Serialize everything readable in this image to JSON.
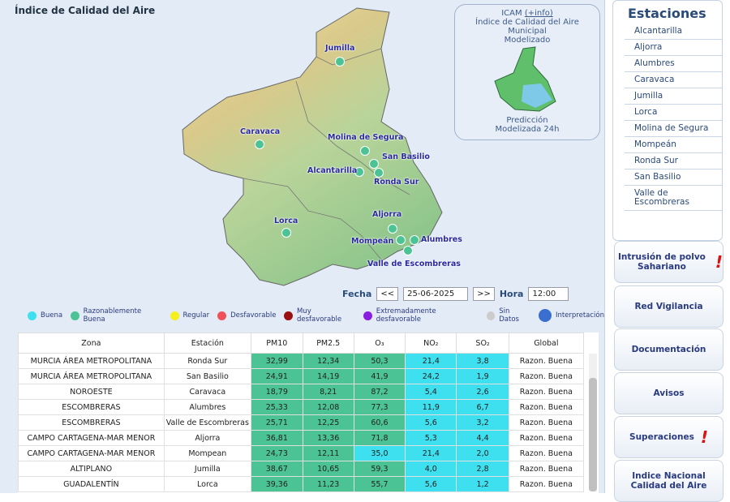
{
  "header": {
    "title": "Índice de Calidad del Aire"
  },
  "icam": {
    "title": "ICAM",
    "link": "(+info)",
    "line1": "Índice de Calidad del Aire Municipal",
    "line2": "Modelizado",
    "line3": "Predicción",
    "line4": "Modelizada 24h"
  },
  "map": {
    "stations": [
      "Jumilla",
      "Caravaca",
      "Molina de Segura",
      "San Basilio",
      "Alcantarilla",
      "Ronda Sur",
      "Lorca",
      "Aljorra",
      "Alumbres",
      "Mompeán",
      "Valle de Escombreras"
    ]
  },
  "controls": {
    "date_label": "Fecha",
    "prev": "<<",
    "date": "25-06-2025",
    "next": ">>",
    "hour_label": "Hora",
    "hour": "12:00"
  },
  "legend": [
    {
      "label": "Buena",
      "color": "#3ee0f0"
    },
    {
      "label": "Razonablemente Buena",
      "color": "#4cc394"
    },
    {
      "label": "Regular",
      "color": "#f5ef1c"
    },
    {
      "label": "Desfavorable",
      "color": "#f0505a"
    },
    {
      "label": "Muy desfavorable",
      "color": "#9a1010"
    },
    {
      "label": "Extremadamente desfavorable",
      "color": "#8a1ee0"
    },
    {
      "label": "Sin Datos",
      "color": "#cccccc"
    },
    {
      "label": "Interpretación",
      "color": "#3a6fd0"
    }
  ],
  "table": {
    "headers": [
      "Zona",
      "Estación",
      "PM10",
      "PM2.5",
      "O₃",
      "NO₂",
      "SO₂",
      "Global"
    ],
    "rows": [
      [
        "MURCIA ÁREA METROPOLITANA",
        "Ronda Sur",
        "32,99",
        "12,34",
        "50,3",
        "21,4",
        "3,8",
        "Razon. Buena"
      ],
      [
        "MURCIA ÁREA METROPOLITANA",
        "San Basilio",
        "24,91",
        "14,19",
        "41,9",
        "24,2",
        "1,9",
        "Razon. Buena"
      ],
      [
        "NOROESTE",
        "Caravaca",
        "18,79",
        "8,21",
        "87,2",
        "5,4",
        "2,6",
        "Razon. Buena"
      ],
      [
        "ESCOMBRERAS",
        "Alumbres",
        "25,33",
        "12,08",
        "77,3",
        "11,9",
        "6,7",
        "Razon. Buena"
      ],
      [
        "ESCOMBRERAS",
        "Valle de Escombreras",
        "25,71",
        "12,25",
        "60,6",
        "5,6",
        "3,2",
        "Razon. Buena"
      ],
      [
        "CAMPO CARTAGENA-MAR MENOR",
        "Aljorra",
        "36,81",
        "13,36",
        "71,8",
        "5,3",
        "4,4",
        "Razon. Buena"
      ],
      [
        "CAMPO CARTAGENA-MAR MENOR",
        "Mompean",
        "24,73",
        "12,11",
        "35,0",
        "21,4",
        "2,0",
        "Razon. Buena"
      ],
      [
        "ALTIPLANO",
        "Jumilla",
        "38,67",
        "10,65",
        "59,3",
        "4,0",
        "2,8",
        "Razon. Buena"
      ],
      [
        "GUADALENTÍN",
        "Lorca",
        "39,36",
        "11,23",
        "55,7",
        "5,6",
        "1,2",
        "Razon. Buena"
      ]
    ],
    "cell_colors": [
      [
        "#ffffff",
        "#ffffff",
        "#4cc394",
        "#4cc394",
        "#4cc394",
        "#3ee0f0",
        "#3ee0f0",
        "#ffffff"
      ],
      [
        "#ffffff",
        "#ffffff",
        "#4cc394",
        "#4cc394",
        "#4cc394",
        "#3ee0f0",
        "#3ee0f0",
        "#ffffff"
      ],
      [
        "#ffffff",
        "#ffffff",
        "#4cc394",
        "#4cc394",
        "#4cc394",
        "#3ee0f0",
        "#3ee0f0",
        "#ffffff"
      ],
      [
        "#ffffff",
        "#ffffff",
        "#4cc394",
        "#4cc394",
        "#4cc394",
        "#3ee0f0",
        "#3ee0f0",
        "#ffffff"
      ],
      [
        "#ffffff",
        "#ffffff",
        "#4cc394",
        "#4cc394",
        "#4cc394",
        "#3ee0f0",
        "#3ee0f0",
        "#ffffff"
      ],
      [
        "#ffffff",
        "#ffffff",
        "#4cc394",
        "#4cc394",
        "#4cc394",
        "#3ee0f0",
        "#3ee0f0",
        "#ffffff"
      ],
      [
        "#ffffff",
        "#ffffff",
        "#4cc394",
        "#4cc394",
        "#3ee0f0",
        "#3ee0f0",
        "#3ee0f0",
        "#ffffff"
      ],
      [
        "#ffffff",
        "#ffffff",
        "#4cc394",
        "#4cc394",
        "#4cc394",
        "#3ee0f0",
        "#3ee0f0",
        "#ffffff"
      ],
      [
        "#ffffff",
        "#ffffff",
        "#4cc394",
        "#4cc394",
        "#4cc394",
        "#3ee0f0",
        "#3ee0f0",
        "#ffffff"
      ]
    ]
  },
  "sidebar": {
    "title": "Estaciones",
    "stations": [
      "Alcantarilla",
      "Aljorra",
      "Alumbres",
      "Caravaca",
      "Jumilla",
      "Lorca",
      "Molina de Segura",
      "Mompeán",
      "Ronda Sur",
      "San Basilio",
      "Valle de Escombreras"
    ],
    "buttons": [
      {
        "label": "Intrusión de polvo Sahariano",
        "alert": "!"
      },
      {
        "label": "Red Vigilancia"
      },
      {
        "label": "Documentación"
      },
      {
        "label": "Avisos"
      },
      {
        "label": "Superaciones",
        "alert": "!"
      },
      {
        "label": "Indice Nacional Calidad del Aire"
      }
    ]
  }
}
